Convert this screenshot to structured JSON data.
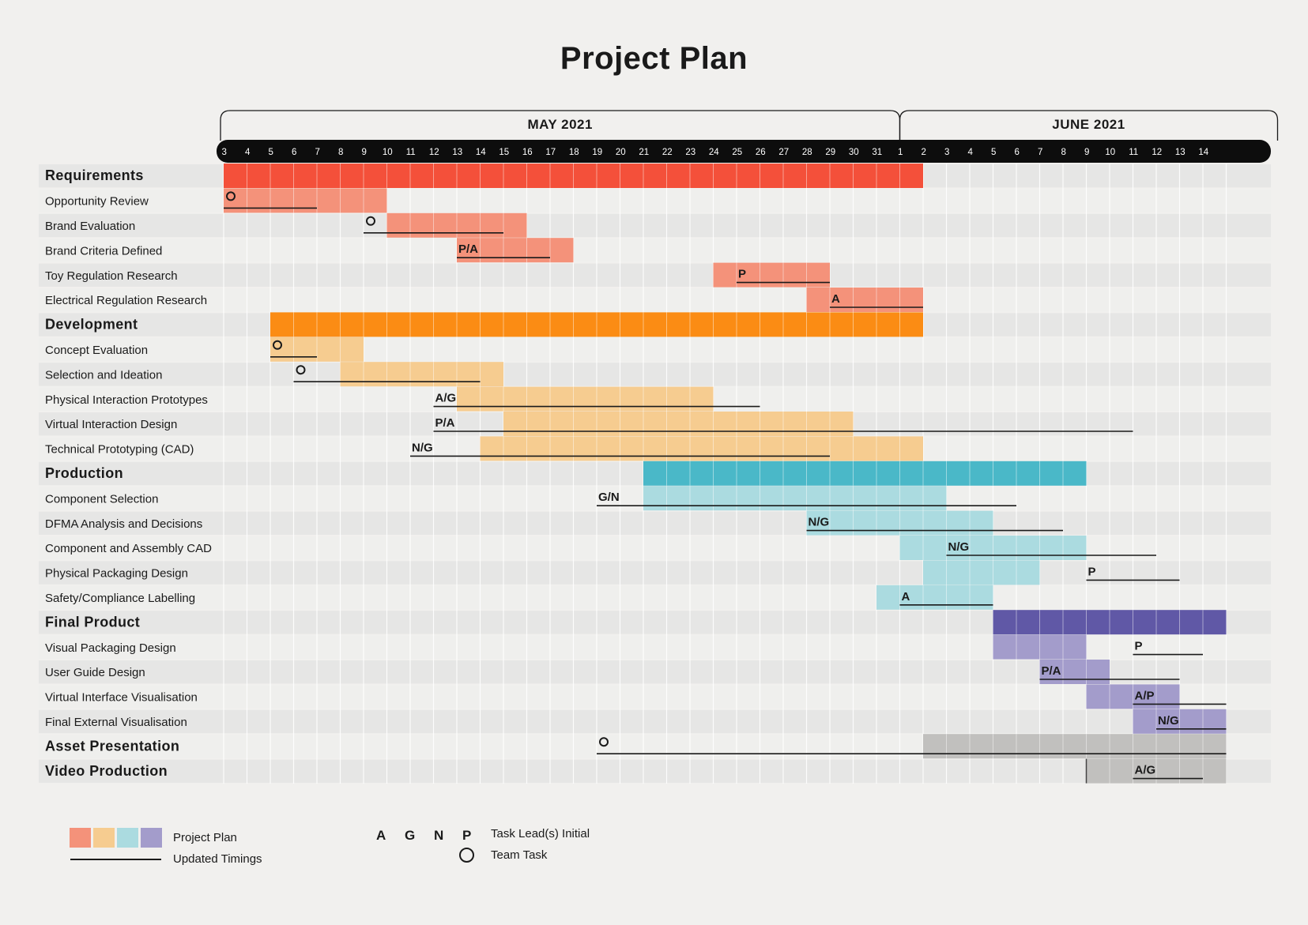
{
  "title": "Project Plan",
  "chart_data": {
    "type": "gantt",
    "months": [
      {
        "label": "MAY 2021",
        "first_day": "2021-05-03",
        "last_day": "2021-05-31"
      },
      {
        "label": "JUNE 2021",
        "first_day": "2021-06-01",
        "last_day": "2021-06-14"
      }
    ],
    "day_ticks": [
      "3",
      "4",
      "5",
      "6",
      "7",
      "8",
      "9",
      "10",
      "11",
      "12",
      "13",
      "14",
      "15",
      "16",
      "17",
      "18",
      "19",
      "20",
      "21",
      "22",
      "23",
      "24",
      "25",
      "26",
      "27",
      "28",
      "29",
      "30",
      "31",
      "1",
      "2",
      "3",
      "4",
      "5",
      "6",
      "7",
      "8",
      "9",
      "10",
      "11",
      "12",
      "13",
      "14"
    ],
    "phase_colors": {
      "Requirements": {
        "main": "#f4503a",
        "task": "#f4927a"
      },
      "Development": {
        "main": "#fb8c14",
        "task": "#f6cc90"
      },
      "Production": {
        "main": "#4ab8c8",
        "task": "#abdbe0"
      },
      "Final Product": {
        "main": "#6058a6",
        "task": "#a39ccb"
      },
      "Asset Presentation": {
        "main": "#c1c0be",
        "task": "#c1c0be"
      },
      "Video Production": {
        "main": "#c1c0be",
        "task": "#c1c0be"
      }
    },
    "rows": [
      {
        "label": "Requirements",
        "kind": "phase",
        "phase": "Requirements",
        "plan": [
          "2021-05-03",
          "2021-06-01"
        ]
      },
      {
        "label": "Opportunity Review",
        "kind": "task",
        "phase": "Requirements",
        "plan": [
          "2021-05-03",
          "2021-05-09"
        ],
        "updated": [
          "2021-05-03",
          "2021-05-06"
        ],
        "marker": "team"
      },
      {
        "label": "Brand Evaluation",
        "kind": "task",
        "phase": "Requirements",
        "plan": [
          "2021-05-10",
          "2021-05-15"
        ],
        "updated": [
          "2021-05-09",
          "2021-05-14"
        ],
        "marker": "team"
      },
      {
        "label": "Brand Criteria Defined",
        "kind": "task",
        "phase": "Requirements",
        "plan": [
          "2021-05-13",
          "2021-05-17"
        ],
        "updated": [
          "2021-05-13",
          "2021-05-16"
        ],
        "lead": "P/A"
      },
      {
        "label": "Toy Regulation Research",
        "kind": "task",
        "phase": "Requirements",
        "plan": [
          "2021-05-24",
          "2021-05-28"
        ],
        "updated": [
          "2021-05-25",
          "2021-05-28"
        ],
        "lead": "P"
      },
      {
        "label": "Electrical Regulation Research",
        "kind": "task",
        "phase": "Requirements",
        "plan": [
          "2021-05-28",
          "2021-06-01"
        ],
        "updated": [
          "2021-05-29",
          "2021-06-01"
        ],
        "lead": "A"
      },
      {
        "label": "Development",
        "kind": "phase",
        "phase": "Development",
        "plan": [
          "2021-05-05",
          "2021-06-01"
        ]
      },
      {
        "label": "Concept Evaluation",
        "kind": "task",
        "phase": "Development",
        "plan": [
          "2021-05-05",
          "2021-05-08"
        ],
        "updated": [
          "2021-05-05",
          "2021-05-06"
        ],
        "marker": "team"
      },
      {
        "label": "Selection and Ideation",
        "kind": "task",
        "phase": "Development",
        "plan": [
          "2021-05-08",
          "2021-05-14"
        ],
        "updated": [
          "2021-05-06",
          "2021-05-13"
        ],
        "marker": "team"
      },
      {
        "label": "Physical Interaction Prototypes",
        "kind": "task",
        "phase": "Development",
        "plan": [
          "2021-05-13",
          "2021-05-23"
        ],
        "updated": [
          "2021-05-12",
          "2021-05-25"
        ],
        "lead": "A/G"
      },
      {
        "label": "Virtual Interaction Design",
        "kind": "task",
        "phase": "Development",
        "plan": [
          "2021-05-15",
          "2021-05-29"
        ],
        "updated": [
          "2021-05-12",
          "2021-06-10"
        ],
        "lead": "P/A"
      },
      {
        "label": "Technical Prototyping (CAD)",
        "kind": "task",
        "phase": "Development",
        "plan": [
          "2021-05-14",
          "2021-06-01"
        ],
        "updated": [
          "2021-05-11",
          "2021-05-28"
        ],
        "lead": "N/G"
      },
      {
        "label": "Production",
        "kind": "phase",
        "phase": "Production",
        "plan": [
          "2021-05-21",
          "2021-06-08"
        ]
      },
      {
        "label": "Component Selection",
        "kind": "task",
        "phase": "Production",
        "plan": [
          "2021-05-21",
          "2021-06-02"
        ],
        "updated": [
          "2021-05-19",
          "2021-06-05"
        ],
        "lead": "G/N"
      },
      {
        "label": "DFMA Analysis and Decisions",
        "kind": "task",
        "phase": "Production",
        "plan": [
          "2021-05-28",
          "2021-06-04"
        ],
        "updated": [
          "2021-05-28",
          "2021-06-07"
        ],
        "lead": "N/G"
      },
      {
        "label": "Component and Assembly CAD",
        "kind": "task",
        "phase": "Production",
        "plan": [
          "2021-06-01",
          "2021-06-08"
        ],
        "updated": [
          "2021-06-03",
          "2021-06-11"
        ],
        "lead": "N/G"
      },
      {
        "label": "Physical Packaging Design",
        "kind": "task",
        "phase": "Production",
        "plan": [
          "2021-06-02",
          "2021-06-06"
        ],
        "updated": [
          "2021-06-09",
          "2021-06-12"
        ],
        "lead": "P"
      },
      {
        "label": "Safety/Compliance Labelling",
        "kind": "task",
        "phase": "Production",
        "plan": [
          "2021-05-31",
          "2021-06-04"
        ],
        "updated": [
          "2021-06-01",
          "2021-06-04"
        ],
        "lead": "A"
      },
      {
        "label": "Final Product",
        "kind": "phase",
        "phase": "Final Product",
        "plan": [
          "2021-06-05",
          "2021-06-14"
        ]
      },
      {
        "label": "Visual Packaging Design",
        "kind": "task",
        "phase": "Final Product",
        "plan": [
          "2021-06-05",
          "2021-06-08"
        ],
        "updated": [
          "2021-06-11",
          "2021-06-13"
        ],
        "lead": "P"
      },
      {
        "label": "User Guide Design",
        "kind": "task",
        "phase": "Final Product",
        "plan": [
          "2021-06-07",
          "2021-06-09"
        ],
        "updated": [
          "2021-06-07",
          "2021-06-12"
        ],
        "lead": "P/A"
      },
      {
        "label": "Virtual Interface Visualisation",
        "kind": "task",
        "phase": "Final Product",
        "plan": [
          "2021-06-09",
          "2021-06-12"
        ],
        "updated": [
          "2021-06-11",
          "2021-06-14"
        ],
        "lead": "A/P"
      },
      {
        "label": "Final External Visualisation",
        "kind": "task",
        "phase": "Final Product",
        "plan": [
          "2021-06-11",
          "2021-06-14"
        ],
        "updated": [
          "2021-06-12",
          "2021-06-14"
        ],
        "lead": "N/G"
      },
      {
        "label": "Asset Presentation",
        "kind": "phase",
        "phase": "Asset Presentation",
        "plan": [
          "2021-06-02",
          "2021-06-14"
        ],
        "updated": [
          "2021-05-19",
          "2021-06-14"
        ],
        "marker": "team"
      },
      {
        "label": "Video Production",
        "kind": "phase",
        "phase": "Video Production",
        "plan": [
          "2021-06-09",
          "2021-06-14"
        ],
        "updated": [
          "2021-06-11",
          "2021-06-13"
        ],
        "lead": "A/G"
      }
    ]
  },
  "legend": {
    "swatch_colors": [
      "#f4927a",
      "#f6cc90",
      "#abdbe0",
      "#a39ccb"
    ],
    "project_plan_label": "Project Plan",
    "updated_timings_label": "Updated Timings",
    "lead_letters": [
      "A",
      "G",
      "N",
      "P"
    ],
    "task_lead_label": "Task Lead(s) Initial",
    "team_task_label": "Team Task"
  }
}
